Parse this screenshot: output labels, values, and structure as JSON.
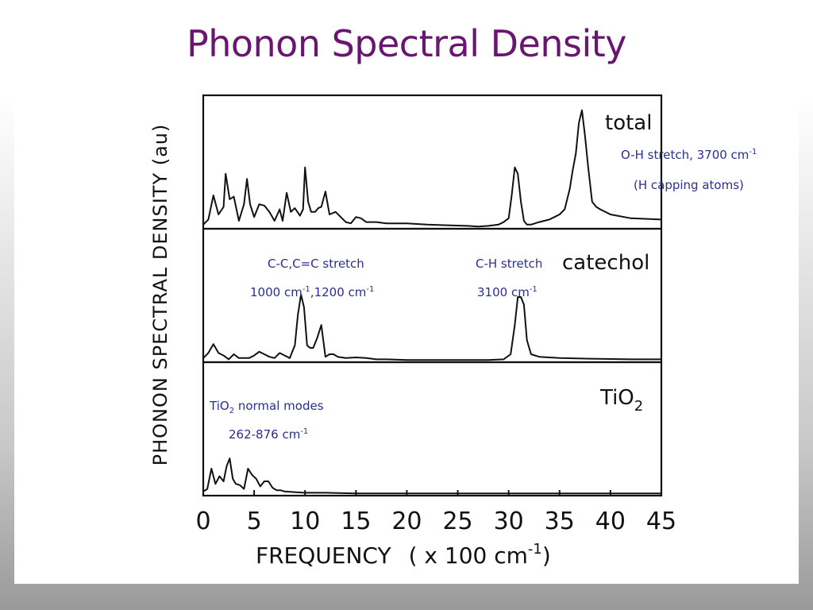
{
  "slide": {
    "title": "Phonon Spectral Density"
  },
  "annotations": {
    "oh_stretch": {
      "line1": "O-H stretch, 3700 cm",
      "sup": "-1",
      "line2": "(H capping atoms)"
    },
    "cc_stretch": {
      "line1": "C-C,C=C stretch",
      "line2_a": "1000 cm",
      "sup_a": "-1",
      "line2_b": ",1200 cm",
      "sup_b": "-1"
    },
    "ch_stretch": {
      "line1": "C-H stretch",
      "line2": "3100 cm",
      "sup": "-1"
    },
    "tio2_modes": {
      "line1_a": "TiO",
      "line1_sub": "2",
      "line1_b": " normal modes",
      "line2": "262-876 cm",
      "sup": "-1"
    }
  },
  "colors": {
    "title": "#6a1670",
    "annotation": "#2b2f8f",
    "plot_line": "#111111"
  },
  "chart_data": {
    "type": "line",
    "xlabel_main": "FREQUENCY",
    "xlabel_unit_a": "( x 100  cm",
    "xlabel_unit_sup": "-1",
    "xlabel_unit_b": ")",
    "ylabel": "PHONON  SPECTRAL  DENSITY  (au)",
    "xlim": [
      0,
      45
    ],
    "xticks": [
      0,
      5,
      10,
      15,
      20,
      25,
      30,
      35,
      40,
      45
    ],
    "ylim": [
      0,
      1
    ],
    "grid": false,
    "panels": [
      {
        "name": "total",
        "label": "total",
        "label_sub": "",
        "series": [
          {
            "x": [
              0,
              0.5,
              1.0,
              1.5,
              2.0,
              2.2,
              2.6,
              3.0,
              3.5,
              4.0,
              4.3,
              4.6,
              5.0,
              5.5,
              6.0,
              6.5,
              7.0,
              7.5,
              7.8,
              8.2,
              8.6,
              9.0,
              9.5,
              9.8,
              10.0,
              10.3,
              10.6,
              11.0,
              11.3,
              11.6,
              12.0,
              12.4,
              13.0,
              14.0,
              14.5,
              15.0,
              15.5,
              16.0,
              17.0,
              18.0,
              20.0,
              22.0,
              24.0,
              26.0,
              27.0,
              28.0,
              29.0,
              29.5,
              30.0,
              30.3,
              30.6,
              30.9,
              31.2,
              31.5,
              31.8,
              32.2,
              32.6,
              33.0,
              34.0,
              34.5,
              35.0,
              35.5,
              36.0,
              36.3,
              36.6,
              36.9,
              37.2,
              37.5,
              37.8,
              38.2,
              38.6,
              39.0,
              40.0,
              42.0,
              45.0
            ],
            "values": [
              0.02,
              0.06,
              0.25,
              0.1,
              0.16,
              0.42,
              0.22,
              0.24,
              0.05,
              0.18,
              0.38,
              0.18,
              0.08,
              0.18,
              0.17,
              0.12,
              0.05,
              0.14,
              0.05,
              0.27,
              0.12,
              0.15,
              0.09,
              0.14,
              0.47,
              0.2,
              0.12,
              0.12,
              0.15,
              0.16,
              0.28,
              0.1,
              0.12,
              0.04,
              0.03,
              0.08,
              0.07,
              0.04,
              0.04,
              0.03,
              0.03,
              0.02,
              0.015,
              0.01,
              0.005,
              0.01,
              0.02,
              0.04,
              0.07,
              0.25,
              0.47,
              0.42,
              0.2,
              0.05,
              0.02,
              0.02,
              0.03,
              0.04,
              0.06,
              0.08,
              0.1,
              0.14,
              0.3,
              0.45,
              0.58,
              0.82,
              0.92,
              0.72,
              0.48,
              0.2,
              0.16,
              0.14,
              0.1,
              0.07,
              0.06
            ]
          }
        ]
      },
      {
        "name": "catechol",
        "label": "catechol",
        "label_sub": "",
        "series": [
          {
            "x": [
              0,
              0.5,
              1.0,
              1.5,
              2.0,
              2.5,
              3.0,
              3.5,
              4.0,
              4.5,
              5.0,
              5.5,
              6.0,
              6.5,
              7.0,
              7.5,
              8.0,
              8.5,
              9.0,
              9.3,
              9.6,
              9.9,
              10.2,
              10.5,
              10.8,
              11.2,
              11.6,
              12.0,
              12.4,
              12.8,
              13.2,
              14.0,
              15.0,
              16.0,
              17.0,
              18.0,
              20.0,
              22.0,
              25.0,
              28.0,
              29.5,
              30.2,
              30.6,
              30.9,
              31.2,
              31.5,
              31.8,
              32.2,
              33.0,
              35.0,
              38.0,
              42.0,
              45.0
            ],
            "values": [
              0.02,
              0.06,
              0.13,
              0.06,
              0.04,
              0.01,
              0.05,
              0.02,
              0.02,
              0.02,
              0.04,
              0.07,
              0.05,
              0.03,
              0.02,
              0.06,
              0.04,
              0.02,
              0.12,
              0.36,
              0.52,
              0.42,
              0.12,
              0.1,
              0.1,
              0.18,
              0.28,
              0.03,
              0.05,
              0.05,
              0.03,
              0.02,
              0.025,
              0.02,
              0.01,
              0.01,
              0.005,
              0.005,
              0.005,
              0.005,
              0.01,
              0.05,
              0.28,
              0.5,
              0.5,
              0.44,
              0.16,
              0.05,
              0.03,
              0.02,
              0.015,
              0.01,
              0.01
            ]
          }
        ]
      },
      {
        "name": "tio2",
        "label": "TiO",
        "label_sub": "2",
        "series": [
          {
            "x": [
              0,
              0.4,
              0.8,
              1.2,
              1.6,
              2.0,
              2.3,
              2.6,
              2.9,
              3.2,
              3.6,
              4.0,
              4.4,
              4.8,
              5.2,
              5.6,
              6.0,
              6.4,
              6.8,
              7.2,
              7.6,
              8.0,
              9.0,
              10.0,
              12.0,
              15.0,
              18.0,
              22.0,
              28.0,
              35.0,
              45.0
            ],
            "values": [
              0.02,
              0.04,
              0.2,
              0.08,
              0.14,
              0.1,
              0.22,
              0.28,
              0.12,
              0.08,
              0.07,
              0.04,
              0.2,
              0.15,
              0.12,
              0.06,
              0.1,
              0.1,
              0.05,
              0.03,
              0.03,
              0.02,
              0.015,
              0.01,
              0.01,
              0.005,
              0.005,
              0.005,
              0.005,
              0.005,
              0.005
            ]
          }
        ]
      }
    ]
  }
}
